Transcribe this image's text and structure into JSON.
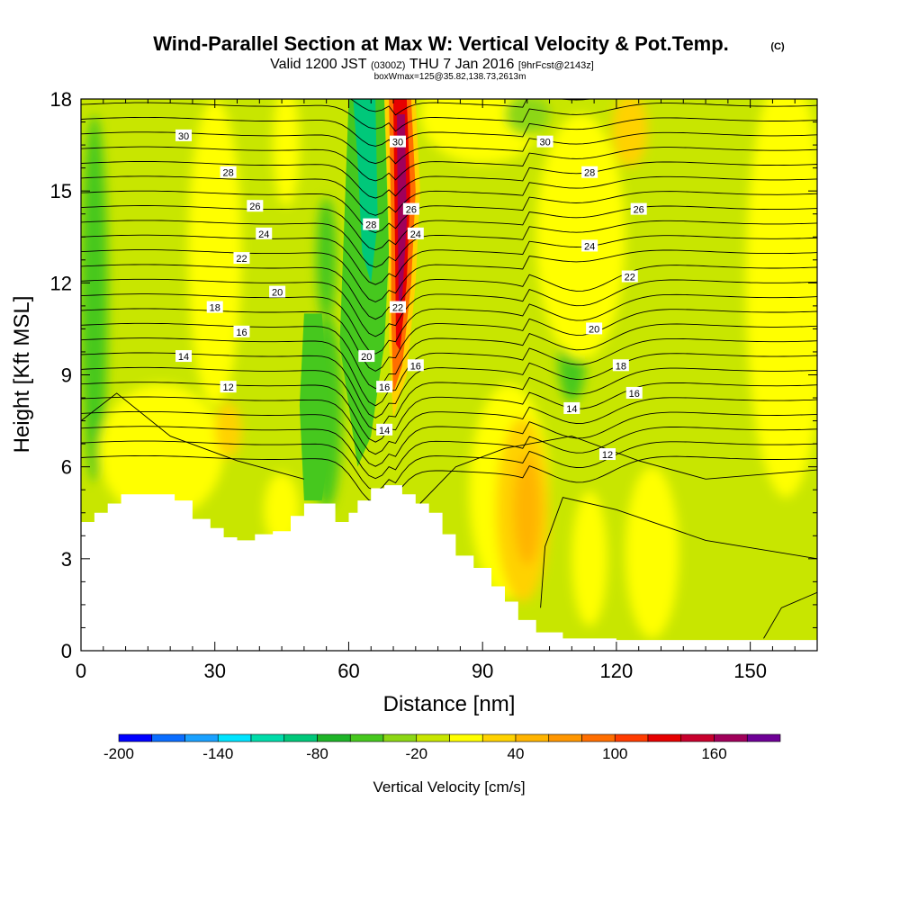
{
  "chart_data": {
    "type": "contour",
    "title": "Wind-Parallel Section at Max W: Vertical Velocity & Pot.Temp.",
    "title_tag": "(C)",
    "subtitle_a": "Valid 1200 JST",
    "subtitle_b": "(0300Z)",
    "subtitle_c": "THU 7 Jan 2016",
    "subtitle_d": "[9hrFcst@2143z]",
    "subtitle2": "boxWmax=125@35.82,138.73,2613m",
    "xlabel": "Distance [nm]",
    "ylabel": "Height [Kft MSL]",
    "xlim": [
      0,
      165
    ],
    "ylim": [
      0,
      18
    ],
    "xticks": [
      0,
      30,
      60,
      90,
      120,
      150
    ],
    "yticks": [
      0,
      3,
      6,
      9,
      12,
      15,
      18
    ],
    "colorbar": {
      "title": "Vertical Velocity [cm/s]",
      "tick_labels": [
        "-200",
        "-140",
        "-80",
        "-20",
        "40",
        "100",
        "160"
      ],
      "colors": [
        "#0000ff",
        "#0a6dff",
        "#1aa1ff",
        "#00e4ff",
        "#00dcaa",
        "#00c87a",
        "#1eb428",
        "#46c81e",
        "#8cd714",
        "#c8e600",
        "#ffff00",
        "#ffd200",
        "#ffb400",
        "#ff9600",
        "#ff6e00",
        "#ff3c00",
        "#e60000",
        "#c8002d",
        "#a0005a",
        "#6e0096"
      ]
    },
    "contour_labels": [
      {
        "text": "30",
        "x": 23,
        "y": 16.8
      },
      {
        "text": "28",
        "x": 33,
        "y": 15.6
      },
      {
        "text": "26",
        "x": 39,
        "y": 14.5
      },
      {
        "text": "24",
        "x": 41,
        "y": 13.6
      },
      {
        "text": "22",
        "x": 36,
        "y": 12.8
      },
      {
        "text": "20",
        "x": 44,
        "y": 11.7
      },
      {
        "text": "18",
        "x": 30,
        "y": 11.2
      },
      {
        "text": "16",
        "x": 36,
        "y": 10.4
      },
      {
        "text": "14",
        "x": 23,
        "y": 9.6
      },
      {
        "text": "12",
        "x": 33,
        "y": 8.6
      },
      {
        "text": "28",
        "x": 65,
        "y": 13.9
      },
      {
        "text": "20",
        "x": 64,
        "y": 9.6
      },
      {
        "text": "16",
        "x": 68,
        "y": 8.6
      },
      {
        "text": "14",
        "x": 68,
        "y": 7.2
      },
      {
        "text": "30",
        "x": 71,
        "y": 16.6
      },
      {
        "text": "26",
        "x": 74,
        "y": 14.4
      },
      {
        "text": "24",
        "x": 75,
        "y": 13.6
      },
      {
        "text": "22",
        "x": 71,
        "y": 11.2
      },
      {
        "text": "16",
        "x": 75,
        "y": 9.3
      },
      {
        "text": "30",
        "x": 104,
        "y": 16.6
      },
      {
        "text": "28",
        "x": 114,
        "y": 15.6
      },
      {
        "text": "26",
        "x": 125,
        "y": 14.4
      },
      {
        "text": "24",
        "x": 114,
        "y": 13.2
      },
      {
        "text": "22",
        "x": 123,
        "y": 12.2
      },
      {
        "text": "20",
        "x": 115,
        "y": 10.5
      },
      {
        "text": "18",
        "x": 121,
        "y": 9.3
      },
      {
        "text": "16",
        "x": 124,
        "y": 8.4
      },
      {
        "text": "14",
        "x": 110,
        "y": 7.9
      },
      {
        "text": "12",
        "x": 118,
        "y": 6.4
      }
    ],
    "terrain_profile": {
      "x": [
        0,
        3,
        6,
        9,
        13,
        17,
        21,
        25,
        29,
        32,
        35,
        39,
        43,
        47,
        50,
        54,
        57,
        60,
        62,
        65,
        68,
        72,
        75,
        78,
        81,
        84,
        88,
        92,
        95,
        98,
        102,
        108,
        120,
        135,
        150,
        165
      ],
      "y": [
        4.2,
        4.5,
        4.8,
        5.1,
        5.1,
        5.1,
        4.9,
        4.3,
        4.0,
        3.7,
        3.6,
        3.8,
        3.9,
        4.4,
        4.8,
        4.8,
        4.2,
        4.5,
        4.9,
        5.3,
        5.4,
        5.1,
        4.8,
        4.5,
        3.8,
        3.1,
        2.7,
        2.1,
        1.6,
        1.0,
        0.6,
        0.4,
        0.35,
        0.35,
        0.35,
        0.35
      ]
    }
  }
}
